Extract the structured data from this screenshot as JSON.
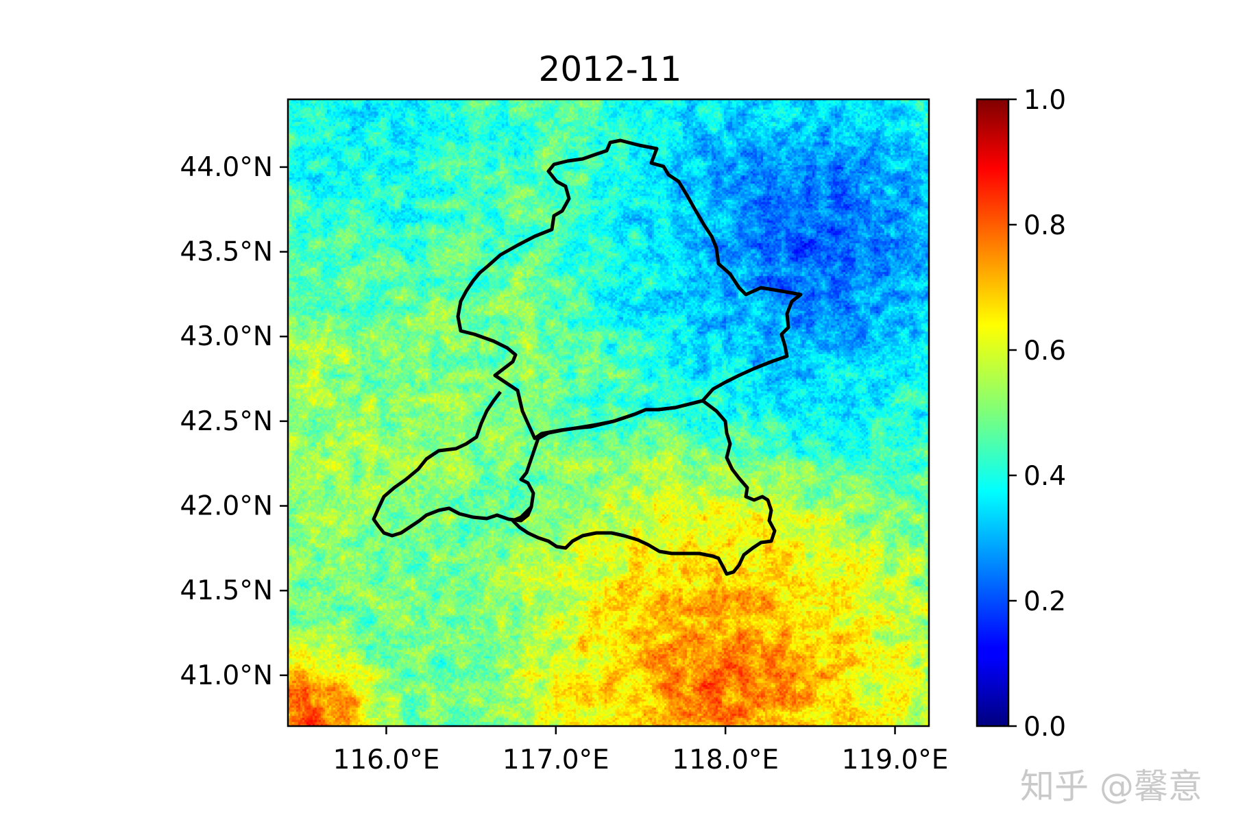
{
  "map": {
    "title": "2012-11",
    "colormap": "jet",
    "value_range": [
      0.0,
      1.0
    ],
    "y_ticks": [
      {
        "value": 44.0,
        "label": "44.0°N"
      },
      {
        "value": 43.5,
        "label": "43.5°N"
      },
      {
        "value": 43.0,
        "label": "43.0°N"
      },
      {
        "value": 42.5,
        "label": "42.5°N"
      },
      {
        "value": 42.0,
        "label": "42.0°N"
      },
      {
        "value": 41.5,
        "label": "41.5°N"
      },
      {
        "value": 41.0,
        "label": "41.0°N"
      }
    ],
    "x_ticks": [
      {
        "value": 116.0,
        "label": "116.0°E"
      },
      {
        "value": 117.0,
        "label": "117.0°E"
      },
      {
        "value": 118.0,
        "label": "118.0°E"
      },
      {
        "value": 119.0,
        "label": "119.0°E"
      }
    ],
    "lon_range": [
      115.42,
      119.2
    ],
    "lat_range": [
      40.7,
      44.4
    ],
    "boundary_color": "#000000"
  },
  "colorbar": {
    "ticks": [
      {
        "value": 1.0,
        "label": "1.0"
      },
      {
        "value": 0.8,
        "label": "0.8"
      },
      {
        "value": 0.6,
        "label": "0.6"
      },
      {
        "value": 0.4,
        "label": "0.4"
      },
      {
        "value": 0.2,
        "label": "0.2"
      },
      {
        "value": 0.0,
        "label": "0.0"
      }
    ]
  },
  "watermark": "知乎 @馨意"
}
